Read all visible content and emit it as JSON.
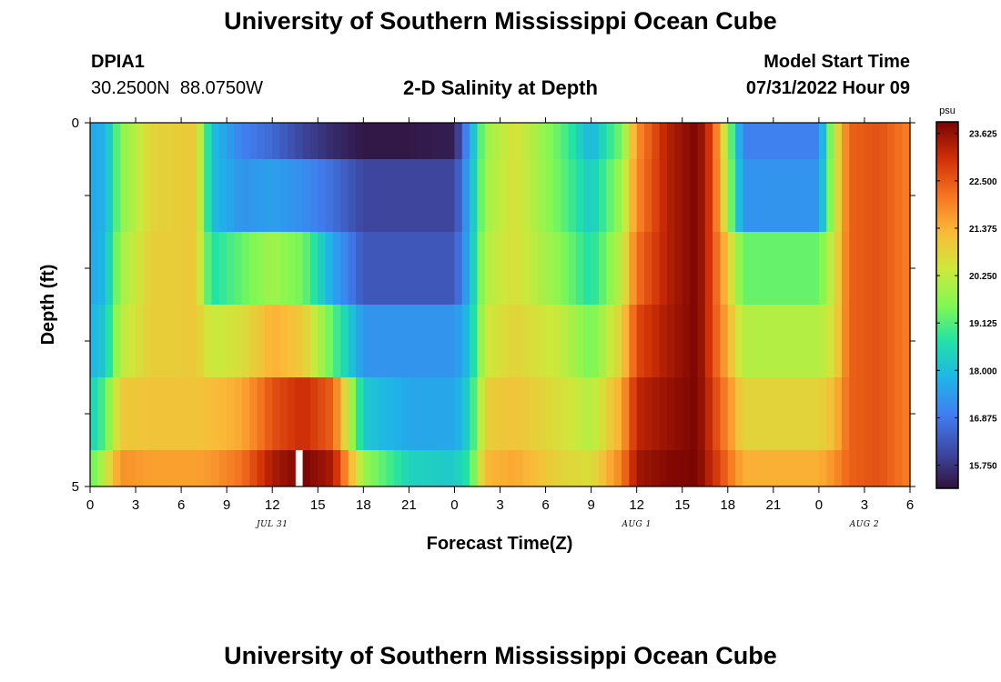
{
  "page": {
    "title_top": "University of Southern Mississippi Ocean Cube",
    "title_bottom": "University of Southern Mississippi Ocean Cube",
    "station": "DPIA1",
    "coordinates": "30.2500N  88.0750W",
    "subtitle": "2-D Salinity at Depth",
    "model_start_label": "Model Start Time",
    "model_start_value": "07/31/2022 Hour 09"
  },
  "chart_data": {
    "type": "heatmap",
    "xlabel": "Forecast Time(Z)",
    "ylabel": "Depth (ft)",
    "x_hours": [
      0,
      54
    ],
    "x_tick_labels": [
      "0",
      "3",
      "6",
      "9",
      "12",
      "15",
      "18",
      "21",
      "0",
      "3",
      "6",
      "9",
      "12",
      "15",
      "18",
      "21",
      "0",
      "3",
      "6"
    ],
    "date_labels": [
      {
        "label": "JUL 31",
        "hour": 12
      },
      {
        "label": "AUG 1",
        "hour": 36
      },
      {
        "label": "AUG 2",
        "hour": 51
      }
    ],
    "y_tick_labels": [
      {
        "label": "0",
        "depth": 0
      },
      {
        "label": "5",
        "depth": 5
      }
    ],
    "ylim": [
      0,
      5
    ],
    "colorbar": {
      "unit": "psu",
      "min": 15.2,
      "max": 23.9,
      "tick_labels": [
        "23.625",
        "22.500",
        "21.375",
        "20.250",
        "19.125",
        "18.000",
        "16.875",
        "15.750"
      ],
      "tick_values": [
        23.625,
        22.5,
        21.375,
        20.25,
        19.125,
        18.0,
        16.875,
        15.75
      ]
    },
    "depth_bands": [
      0,
      0.5,
      1.5,
      2.5,
      3.5,
      4.5,
      5.0
    ],
    "keyframes_hours": [
      0,
      1,
      2,
      4,
      7,
      8,
      10,
      12,
      14,
      16,
      18,
      21,
      24,
      25,
      26,
      28,
      31,
      33,
      35,
      36,
      38,
      40,
      41,
      43,
      45,
      48,
      49,
      50,
      52,
      54
    ],
    "salinity_rows": [
      [
        17.6,
        17.8,
        19.6,
        20.8,
        21.0,
        18.0,
        17.0,
        16.6,
        16.0,
        15.6,
        15.3,
        15.3,
        15.4,
        17.5,
        19.8,
        20.6,
        19.2,
        17.8,
        19.5,
        21.8,
        23.3,
        23.9,
        22.7,
        17.0,
        17.0,
        17.0,
        20.3,
        22.4,
        22.6,
        22.0
      ],
      [
        17.6,
        17.8,
        19.6,
        20.8,
        21.0,
        18.0,
        17.3,
        17.5,
        17.2,
        16.7,
        16.0,
        16.0,
        16.0,
        17.7,
        19.9,
        20.6,
        19.3,
        18.2,
        19.9,
        21.9,
        23.3,
        23.9,
        22.7,
        17.3,
        17.3,
        17.3,
        20.3,
        22.4,
        22.6,
        22.0
      ],
      [
        17.6,
        17.9,
        19.9,
        20.9,
        21.0,
        18.6,
        19.3,
        19.9,
        19.4,
        17.6,
        16.3,
        16.3,
        16.3,
        17.8,
        20.1,
        20.6,
        19.6,
        18.6,
        20.3,
        22.2,
        23.3,
        23.9,
        22.7,
        19.3,
        19.3,
        19.3,
        20.5,
        22.4,
        22.6,
        22.0
      ],
      [
        17.8,
        18.2,
        20.2,
        20.9,
        21.0,
        20.3,
        20.6,
        21.4,
        21.0,
        19.2,
        17.3,
        17.3,
        17.3,
        18.0,
        20.4,
        20.8,
        20.3,
        19.4,
        20.9,
        22.7,
        23.4,
        23.9,
        22.7,
        20.1,
        20.1,
        20.1,
        20.6,
        22.4,
        22.6,
        22.0
      ],
      [
        18.3,
        19.2,
        21.0,
        21.1,
        21.1,
        21.2,
        21.5,
        22.6,
        23.1,
        22.4,
        18.2,
        17.6,
        17.6,
        18.4,
        20.9,
        21.1,
        20.6,
        20.1,
        21.5,
        23.2,
        23.6,
        23.9,
        22.9,
        20.8,
        20.8,
        20.8,
        21.2,
        22.4,
        22.6,
        22.0
      ],
      [
        19.2,
        20.3,
        21.8,
        21.6,
        21.6,
        21.7,
        22.2,
        23.4,
        23.9,
        23.4,
        19.8,
        18.4,
        18.2,
        18.8,
        21.3,
        21.5,
        20.8,
        20.6,
        22.0,
        23.5,
        23.8,
        23.9,
        23.1,
        21.4,
        21.4,
        21.4,
        21.8,
        22.4,
        22.6,
        22.0
      ]
    ],
    "missing_hour": 13.5
  }
}
